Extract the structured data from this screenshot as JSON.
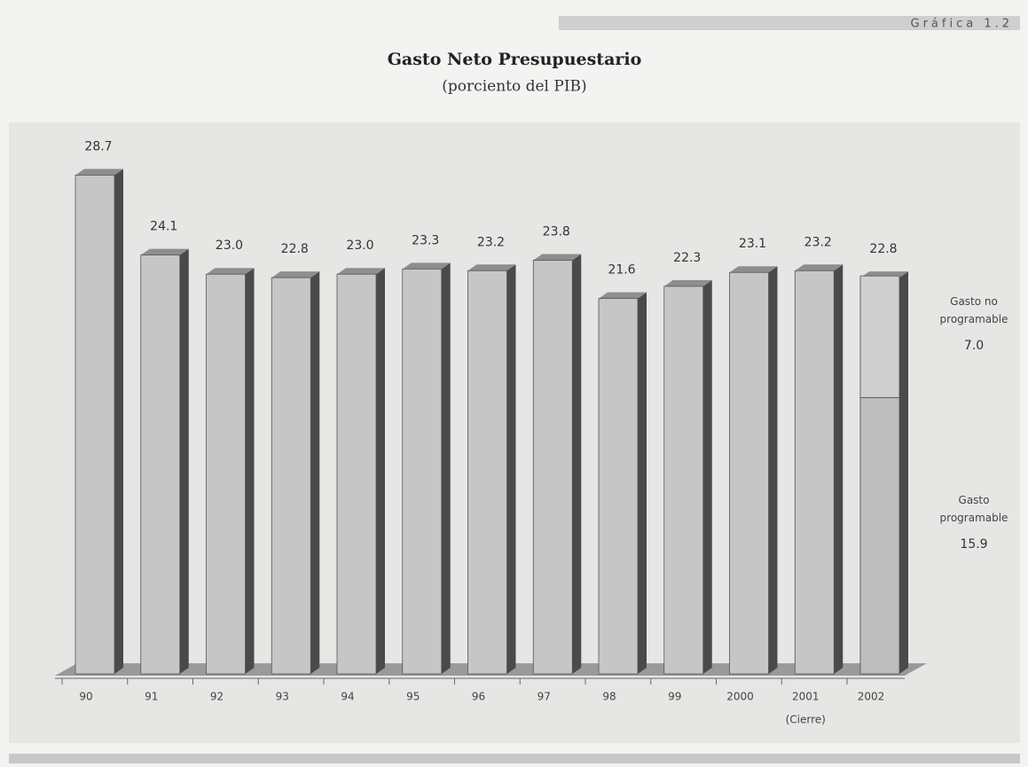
{
  "chart_data": {
    "type": "bar3d",
    "header": "Gráfica 1.2",
    "title": "Gasto Neto Presupuestario",
    "subtitle": "(porciento del PIB)",
    "categories": [
      "90",
      "91",
      "92",
      "93",
      "94",
      "95",
      "96",
      "97",
      "98",
      "99",
      "2000",
      "2001",
      "2002"
    ],
    "category_note": "(Cierre)",
    "values": [
      28.7,
      24.1,
      23.0,
      22.8,
      23.0,
      23.3,
      23.2,
      23.8,
      21.6,
      22.3,
      23.1,
      23.2,
      22.8
    ],
    "value_labels": [
      "28.7",
      "24.1",
      "23.0",
      "22.8",
      "23.0",
      "23.3",
      "23.2",
      "23.8",
      "21.6",
      "22.3",
      "23.1",
      "23.2",
      "22.8"
    ],
    "color": "#c6c6c6",
    "segments": [
      {
        "name": "Gasto programable",
        "value": 15.9,
        "value_label": "15.9",
        "color": "#bdbdbd"
      },
      {
        "name": "Gasto no programable",
        "value": 7.0,
        "value_label": "7.0",
        "color": "#cfcfcf"
      }
    ]
  }
}
